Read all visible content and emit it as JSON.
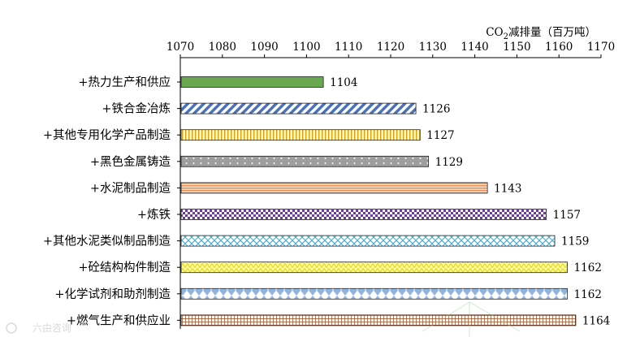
{
  "chart_data": {
    "type": "bar",
    "orientation": "horizontal",
    "unit_label": {
      "prefix": "CO",
      "subscript": "2",
      "suffix": "减排量（百万吨）"
    },
    "xlim": [
      1070,
      1170
    ],
    "xticks": [
      1070,
      1080,
      1090,
      1100,
      1110,
      1120,
      1130,
      1140,
      1150,
      1160,
      1170
    ],
    "axis_position": "top",
    "grid": false,
    "legend": "none",
    "categories": [
      "+热力生产和供应",
      "+铁合金冶炼",
      "+其他专用化学产品制造",
      "+黑色金属铸造",
      "+水泥制品制造",
      "+炼铁",
      "+其他水泥类似制品制造",
      "+砼结构构件制造",
      "+化学试剂和助剂制造",
      "+燃气生产和供应业"
    ],
    "values": [
      1104,
      1126,
      1127,
      1129,
      1143,
      1157,
      1159,
      1162,
      1162,
      1164
    ],
    "bar_styles": [
      {
        "pattern": "solid",
        "fg": "#6aa84f",
        "bg": "#6aa84f"
      },
      {
        "pattern": "diagonal",
        "fg": "#4a72b8",
        "bg": "#ffffff"
      },
      {
        "pattern": "vertical-lines",
        "fg": "#d4a017",
        "bg": "#fff7c0"
      },
      {
        "pattern": "dots",
        "fg": "#ffffff",
        "bg": "#9e9e9e"
      },
      {
        "pattern": "horizontal-lines",
        "fg": "#e8925a",
        "bg": "#fbe2cf"
      },
      {
        "pattern": "checker",
        "fg": "#6a3aa0",
        "bg": "#ffffff"
      },
      {
        "pattern": "crosshatch-diag",
        "fg": "#3aa7c9",
        "bg": "#ffffff"
      },
      {
        "pattern": "zigzag",
        "fg": "#e9e030",
        "bg": "#fffbb0"
      },
      {
        "pattern": "diamonds",
        "fg": "#8fb4e0",
        "bg": "#ffffff"
      },
      {
        "pattern": "grid",
        "fg": "#a0451f",
        "bg": "#ffffff"
      }
    ]
  },
  "watermark": {
    "text": "六由咨询"
  }
}
